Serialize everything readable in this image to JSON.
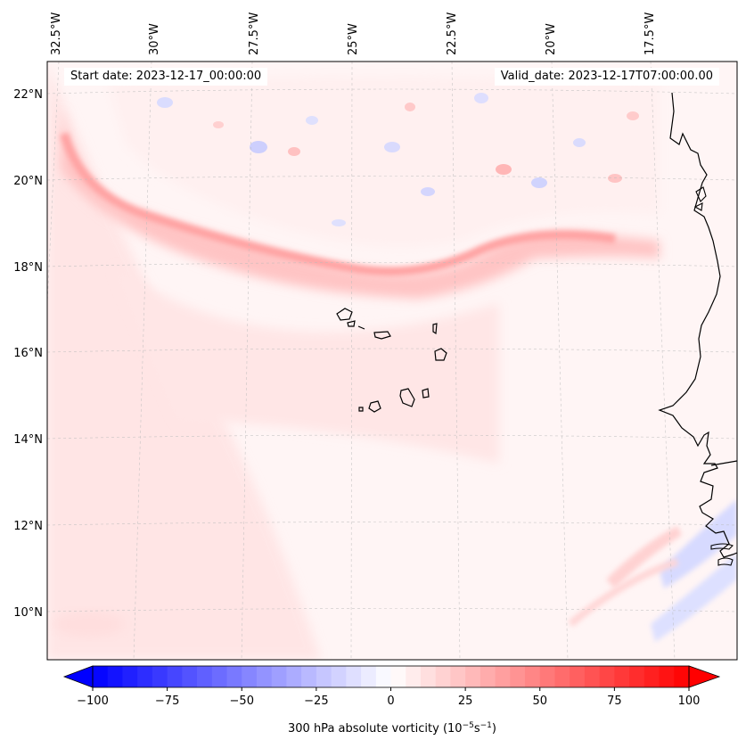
{
  "info": {
    "start_date": "Start date: 2023-12-17_00:00:00",
    "valid_date": "Valid_date: 2023-12-17T07:00:00.00"
  },
  "longitude_labels": [
    "32.5°W",
    "30°W",
    "27.5°W",
    "25°W",
    "22.5°W",
    "20°W",
    "17.5°W"
  ],
  "latitude_labels": [
    "22°N",
    "20°N",
    "18°N",
    "16°N",
    "14°N",
    "12°N",
    "10°N"
  ],
  "colorbar": {
    "label": "300 hPa absolute vorticity (10",
    "label_exp1": "−5",
    "label_mid": "s",
    "label_exp2": "−1",
    "label_end": ")",
    "ticks": [
      "−100",
      "−75",
      "−50",
      "−25",
      "0",
      "25",
      "50",
      "75",
      "100"
    ],
    "min": -100,
    "max": 100,
    "colormap": "bwr",
    "extend": "both"
  },
  "colors": {
    "negative": "#0000ff",
    "neutral": "#ffffff",
    "positive": "#ff0000",
    "coastline": "#000000"
  }
}
